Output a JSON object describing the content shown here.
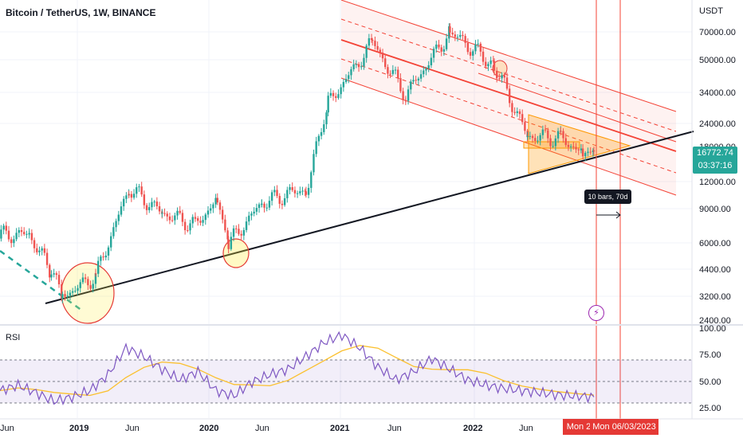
{
  "header": {
    "title": "Bitcoin / TetherUS, 1W, BINANCE"
  },
  "price_axis": {
    "unit": "USDT",
    "ticks": [
      "70000.00",
      "50000.00",
      "34000.00",
      "24000.00",
      "18000.00",
      "12000.00",
      "9000.00",
      "6000.00",
      "4400.00",
      "3200.00",
      "2400.00"
    ],
    "current_price": "16772.74",
    "countdown": "03:37:16"
  },
  "rsi_panel": {
    "label": "RSI",
    "ticks": [
      "100.00",
      "75.00",
      "50.00",
      "25.00"
    ]
  },
  "time_axis": {
    "labels": [
      "Jun",
      "2019",
      "Jun",
      "2020",
      "Jun",
      "2021",
      "Jun",
      "2022",
      "Jun"
    ],
    "highlight_dates": [
      "Mon 2",
      "Mon 06/03/2023"
    ]
  },
  "annotations": {
    "measure_tooltip": "10 bars, 70d"
  },
  "colors": {
    "up": "#26a69a",
    "down": "#ef5350",
    "channel": "#f44336",
    "rsi_line": "#7e57c2",
    "rsi_ma": "#fbc02d",
    "trendline": "#000000"
  },
  "chart_data": {
    "type": "candlestick",
    "title": "Bitcoin / TetherUS, 1W, BINANCE",
    "y_scale": "log",
    "ylim": [
      2300,
      95000
    ],
    "price_points": [
      {
        "date": "2018-06",
        "close": 6400
      },
      {
        "date": "2018-09",
        "close": 6500
      },
      {
        "date": "2018-11",
        "close": 4200
      },
      {
        "date": "2018-12",
        "close": 3200
      },
      {
        "date": "2019-03",
        "close": 4000
      },
      {
        "date": "2019-06",
        "close": 11000
      },
      {
        "date": "2019-09",
        "close": 8300
      },
      {
        "date": "2019-12",
        "close": 7200
      },
      {
        "date": "2020-02",
        "close": 9700
      },
      {
        "date": "2020-03",
        "close": 5800
      },
      {
        "date": "2020-06",
        "close": 9300
      },
      {
        "date": "2020-10",
        "close": 11000
      },
      {
        "date": "2020-12",
        "close": 29000
      },
      {
        "date": "2021-04",
        "close": 58000
      },
      {
        "date": "2021-07",
        "close": 32000
      },
      {
        "date": "2021-11",
        "close": 66000
      },
      {
        "date": "2022-03",
        "close": 45000
      },
      {
        "date": "2022-06",
        "close": 20000
      },
      {
        "date": "2022-09",
        "close": 19500
      },
      {
        "date": "2022-11",
        "close": 16500
      },
      {
        "date": "2022-12",
        "close": 16772
      }
    ],
    "rsi": {
      "ylim": [
        15,
        100
      ],
      "levels": [
        70,
        50,
        30
      ],
      "values": [
        40,
        45,
        38,
        30,
        34,
        40,
        55,
        80,
        72,
        60,
        50,
        58,
        40,
        35,
        48,
        55,
        60,
        72,
        85,
        92,
        80,
        62,
        50,
        58,
        70,
        60,
        50,
        45,
        42,
        40,
        38,
        36,
        35,
        34
      ]
    }
  }
}
